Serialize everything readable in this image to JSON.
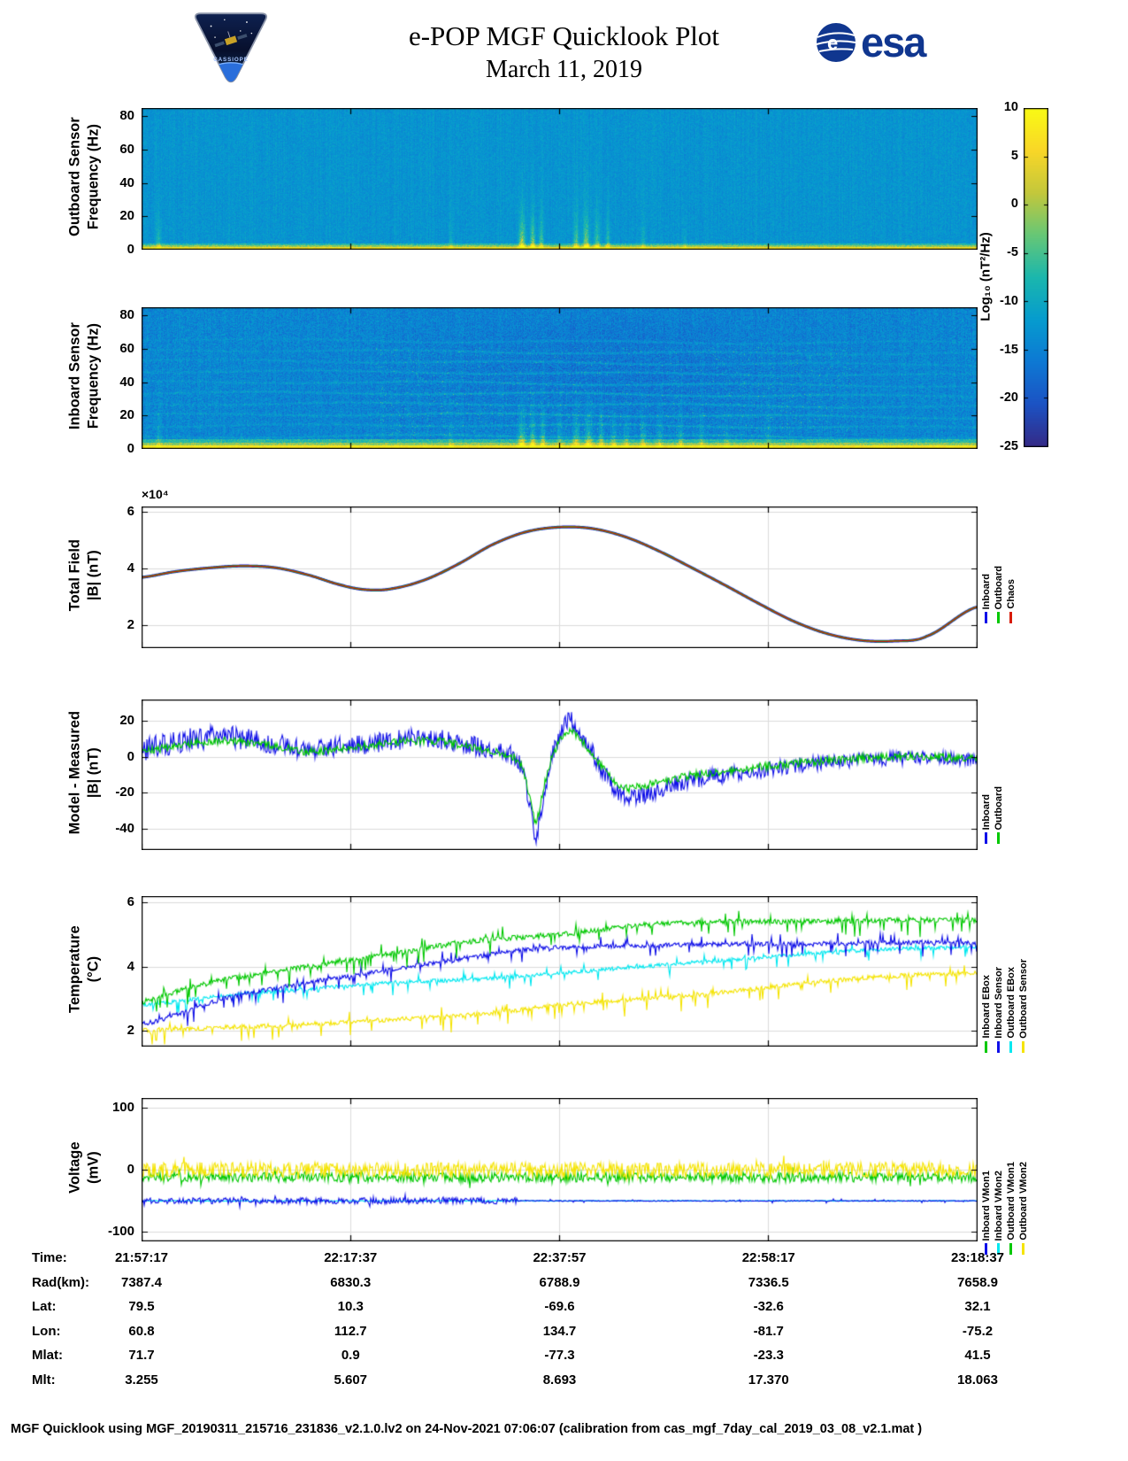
{
  "header": {
    "title": "e-POP MGF Quicklook Plot",
    "date": "March 11, 2019",
    "mission_text": "CASSIOPE",
    "esa_text": "esa"
  },
  "chart_data": {
    "title": "e-POP MGF Quicklook Plot",
    "subtitle": "March 11, 2019",
    "x_axis": {
      "label": "Time",
      "ticks": [
        "21:57:17",
        "22:17:37",
        "22:37:57",
        "22:58:17",
        "23:18:37"
      ]
    },
    "colorbar": {
      "label": "Log₁₀ (nT²/Hz)",
      "ticks": [
        10,
        5,
        0,
        -5,
        -10,
        -15,
        -20,
        -25
      ],
      "min": -25,
      "max": 10
    },
    "panels": [
      {
        "type": "heatmap",
        "name": "outboard-spectrogram",
        "ylabel": [
          "Outboard Sensor",
          "Frequency (Hz)"
        ],
        "yticks": [
          0,
          20,
          40,
          60,
          80
        ],
        "ylim": [
          0,
          85
        ],
        "base_level_db": -12.8,
        "noise_db": 1.8,
        "low_band": {
          "freq_hz": 2,
          "level_db": 7
        },
        "bands": [],
        "streaks": [
          {
            "x": 0.02,
            "amp": 8,
            "w": 0.003
          },
          {
            "x": 0.37,
            "amp": 5,
            "w": 0.0025
          },
          {
            "x": 0.455,
            "amp": 20,
            "w": 0.0035
          },
          {
            "x": 0.468,
            "amp": 16,
            "w": 0.003
          },
          {
            "x": 0.478,
            "amp": 12,
            "w": 0.0025
          },
          {
            "x": 0.52,
            "amp": 12,
            "w": 0.003
          },
          {
            "x": 0.532,
            "amp": 16,
            "w": 0.0035
          },
          {
            "x": 0.545,
            "amp": 12,
            "w": 0.003
          },
          {
            "x": 0.558,
            "amp": 10,
            "w": 0.0025
          },
          {
            "x": 0.6,
            "amp": 6,
            "w": 0.0025
          },
          {
            "x": 0.65,
            "amp": 4,
            "w": 0.0025
          }
        ]
      },
      {
        "type": "heatmap",
        "name": "inboard-spectrogram",
        "ylabel": [
          "Inboard Sensor",
          "Frequency (Hz)"
        ],
        "yticks": [
          0,
          20,
          40,
          60,
          80
        ],
        "ylim": [
          0,
          85
        ],
        "base_level_db": -14.5,
        "noise_db": 3,
        "low_band": {
          "freq_hz": 3,
          "level_db": 8
        },
        "bands": [
          {
            "f": 6.5,
            "amp": 4
          },
          {
            "f": 13,
            "amp": 3.5
          },
          {
            "f": 19.5,
            "amp": 4.2
          },
          {
            "f": 26,
            "amp": 3.6
          },
          {
            "f": 32.5,
            "amp": 4.2
          },
          {
            "f": 39,
            "amp": 3.6
          },
          {
            "f": 45.5,
            "amp": 3.4
          },
          {
            "f": 52,
            "amp": 3
          },
          {
            "f": 58.5,
            "amp": 3
          },
          {
            "f": 65,
            "amp": 2.4
          }
        ],
        "streaks": [
          {
            "x": 0.02,
            "amp": 6,
            "w": 0.003
          },
          {
            "x": 0.37,
            "amp": 5,
            "w": 0.003
          },
          {
            "x": 0.455,
            "amp": 16,
            "w": 0.004
          },
          {
            "x": 0.468,
            "amp": 14,
            "w": 0.003
          },
          {
            "x": 0.48,
            "amp": 12,
            "w": 0.003
          },
          {
            "x": 0.5,
            "amp": 8,
            "w": 0.003
          },
          {
            "x": 0.52,
            "amp": 12,
            "w": 0.004
          },
          {
            "x": 0.535,
            "amp": 14,
            "w": 0.004
          },
          {
            "x": 0.55,
            "amp": 10,
            "w": 0.003
          },
          {
            "x": 0.565,
            "amp": 9,
            "w": 0.003
          },
          {
            "x": 0.58,
            "amp": 7,
            "w": 0.003
          },
          {
            "x": 0.6,
            "amp": 8,
            "w": 0.003
          },
          {
            "x": 0.62,
            "amp": 7,
            "w": 0.003
          },
          {
            "x": 0.645,
            "amp": 8,
            "w": 0.003
          },
          {
            "x": 0.67,
            "amp": 6,
            "w": 0.003
          },
          {
            "x": 0.7,
            "amp": 5,
            "w": 0.003
          },
          {
            "x": 0.75,
            "amp": 4,
            "w": 0.003
          }
        ]
      },
      {
        "type": "line",
        "name": "total-field",
        "ylabel": [
          "Total Field",
          "|B| (nT)"
        ],
        "scale_label": "×10⁴",
        "yticks": [
          2,
          4,
          6
        ],
        "ylim": [
          1.2,
          6.2
        ],
        "legend": [
          {
            "label": "Inboard",
            "color": "#0f0fe8"
          },
          {
            "label": "Outboard",
            "color": "#00c800"
          },
          {
            "label": "Chaos",
            "color": "#d81b06"
          }
        ],
        "x": [
          0,
          0.04,
          0.08,
          0.12,
          0.16,
          0.2,
          0.24,
          0.27,
          0.3,
          0.34,
          0.38,
          0.42,
          0.46,
          0.5,
          0.54,
          0.58,
          0.62,
          0.66,
          0.7,
          0.74,
          0.78,
          0.82,
          0.86,
          0.9,
          0.94,
          1.0
        ],
        "values_1e4": [
          3.7,
          3.9,
          4.03,
          4.1,
          4.04,
          3.78,
          3.42,
          3.26,
          3.3,
          3.62,
          4.18,
          4.85,
          5.3,
          5.47,
          5.42,
          5.12,
          4.62,
          4.02,
          3.4,
          2.76,
          2.16,
          1.72,
          1.48,
          1.45,
          1.62,
          2.65
        ]
      },
      {
        "type": "noisy-lines",
        "name": "model-minus-measured",
        "ylabel": [
          "Model - Measured",
          "|B| (nT)"
        ],
        "yticks": [
          -40,
          -20,
          0,
          20
        ],
        "ylim": [
          -52,
          32
        ],
        "legend": [
          {
            "label": "Inboard",
            "color": "#0f0fe8"
          },
          {
            "label": "Outboard",
            "color": "#00c800"
          }
        ],
        "series": [
          {
            "name": "Inboard",
            "color": "#0f0fe8",
            "noise": 6,
            "taper": true,
            "x": [
              0,
              0.05,
              0.1,
              0.15,
              0.2,
              0.25,
              0.3,
              0.35,
              0.4,
              0.44,
              0.455,
              0.465,
              0.472,
              0.482,
              0.492,
              0.505,
              0.515,
              0.53,
              0.55,
              0.575,
              0.6,
              0.65,
              0.7,
              0.75,
              0.8,
              0.85,
              0.9,
              0.95,
              1.0
            ],
            "values": [
              4,
              9,
              11,
              8,
              4,
              6,
              9,
              10,
              6,
              2,
              -6,
              -28,
              -44,
              -20,
              2,
              16,
              20,
              10,
              -6,
              -22,
              -21,
              -14,
              -10,
              -7,
              -4,
              -2,
              -1,
              0,
              -2
            ]
          },
          {
            "name": "Outboard",
            "color": "#00c800",
            "noise": 2.2,
            "x": [
              0,
              0.05,
              0.1,
              0.15,
              0.2,
              0.25,
              0.3,
              0.35,
              0.4,
              0.44,
              0.455,
              0.465,
              0.472,
              0.482,
              0.492,
              0.505,
              0.515,
              0.53,
              0.55,
              0.575,
              0.6,
              0.65,
              0.7,
              0.75,
              0.8,
              0.85,
              0.9,
              0.95,
              1.0
            ],
            "values": [
              3,
              7,
              9,
              7,
              3,
              5,
              8,
              9,
              5,
              1,
              -5,
              -22,
              -36,
              -16,
              1,
              11,
              14,
              7,
              -5,
              -17,
              -16,
              -11,
              -8,
              -5,
              -3,
              -1,
              0,
              0,
              -1
            ]
          }
        ]
      },
      {
        "type": "noisy-lines",
        "name": "temperature",
        "ylabel": [
          "Temperature",
          "(°C)"
        ],
        "yticks": [
          2,
          4,
          6
        ],
        "ylim": [
          1.5,
          6.2
        ],
        "legend": [
          {
            "label": "Inboard EBox",
            "color": "#00c800"
          },
          {
            "label": "Inboard Sensor",
            "color": "#0f0fe8"
          },
          {
            "label": "Outboard EBox",
            "color": "#00e8f0"
          },
          {
            "label": "Outboard Sensor",
            "color": "#f5e400"
          }
        ],
        "series": [
          {
            "name": "Outboard Sensor",
            "color": "#f5e400",
            "noise": 0.07,
            "spike": 0.3,
            "x": [
              0,
              0.1,
              0.2,
              0.3,
              0.4,
              0.5,
              0.6,
              0.7,
              0.8,
              0.9,
              1.0
            ],
            "values": [
              2.0,
              2.1,
              2.2,
              2.35,
              2.5,
              2.8,
              3.0,
              3.2,
              3.5,
              3.7,
              3.8
            ]
          },
          {
            "name": "Outboard EBox",
            "color": "#00e8f0",
            "noise": 0.06,
            "spike": 0.22,
            "x": [
              0,
              0.1,
              0.2,
              0.3,
              0.4,
              0.5,
              0.6,
              0.7,
              0.8,
              0.9,
              1.0
            ],
            "values": [
              2.8,
              3.1,
              3.3,
              3.5,
              3.6,
              3.8,
              4.0,
              4.2,
              4.4,
              4.55,
              4.6
            ]
          },
          {
            "name": "Inboard Sensor",
            "color": "#0f0fe8",
            "noise": 0.07,
            "spike": 0.28,
            "x": [
              0,
              0.1,
              0.2,
              0.3,
              0.4,
              0.45,
              0.5,
              0.6,
              0.7,
              0.8,
              0.9,
              1.0
            ],
            "values": [
              2.2,
              3.0,
              3.5,
              3.9,
              4.3,
              4.5,
              4.6,
              4.65,
              4.7,
              4.7,
              4.75,
              4.75
            ]
          },
          {
            "name": "Inboard EBox",
            "color": "#00c800",
            "noise": 0.08,
            "spike": 0.32,
            "x": [
              0,
              0.05,
              0.1,
              0.2,
              0.3,
              0.4,
              0.5,
              0.6,
              0.7,
              0.8,
              0.9,
              1.0
            ],
            "values": [
              2.9,
              3.3,
              3.6,
              4.0,
              4.4,
              4.8,
              5.0,
              5.3,
              5.4,
              5.4,
              5.45,
              5.45
            ]
          }
        ]
      },
      {
        "type": "noisy-lines",
        "name": "voltage",
        "ylabel": [
          "Voltage",
          "(mV)"
        ],
        "yticks": [
          -100,
          0,
          100
        ],
        "ylim": [
          -115,
          115
        ],
        "legend": [
          {
            "label": "Inboard VMon1",
            "color": "#0f0fe8"
          },
          {
            "label": "Inboard VMon2",
            "color": "#00e8f0"
          },
          {
            "label": "Outboard VMon1",
            "color": "#00c800"
          },
          {
            "label": "Outboard VMon2",
            "color": "#f5e400"
          }
        ],
        "series": [
          {
            "name": "Inboard VMon2",
            "color": "#00e8f0",
            "noise": 0.8,
            "x": [
              0,
              1
            ],
            "values": [
              -50,
              -50
            ]
          },
          {
            "name": "Inboard VMon1",
            "color": "#0f0fe8",
            "noise": 5,
            "noise_until": 0.45,
            "noise_after": 0.8,
            "burst": 12,
            "x": [
              0,
              1
            ],
            "values": [
              -50,
              -50
            ]
          },
          {
            "name": "Outboard VMon1",
            "color": "#00c800",
            "noise": 8,
            "burst": 10,
            "x": [
              0,
              1
            ],
            "values": [
              -12,
              -12
            ]
          },
          {
            "name": "Outboard VMon2",
            "color": "#f5e400",
            "noise": 12,
            "burst": 14,
            "x": [
              0,
              1
            ],
            "values": [
              0,
              0
            ]
          }
        ]
      }
    ]
  },
  "bottom_table": {
    "rows": [
      {
        "label": "Time:",
        "values": [
          "21:57:17",
          "22:17:37",
          "22:37:57",
          "22:58:17",
          "23:18:37"
        ]
      },
      {
        "label": "Rad(km):",
        "values": [
          "7387.4",
          "6830.3",
          "6788.9",
          "7336.5",
          "7658.9"
        ]
      },
      {
        "label": "Lat:",
        "values": [
          "79.5",
          "10.3",
          "-69.6",
          "-32.6",
          "32.1"
        ]
      },
      {
        "label": "Lon:",
        "values": [
          "60.8",
          "112.7",
          "134.7",
          "-81.7",
          "-75.2"
        ]
      },
      {
        "label": "Mlat:",
        "values": [
          "71.7",
          "0.9",
          "-77.3",
          "-23.3",
          "41.5"
        ]
      },
      {
        "label": "Mlt:",
        "values": [
          "3.255",
          "5.607",
          "8.693",
          "17.370",
          "18.063"
        ]
      }
    ]
  },
  "footer": "MGF Quicklook using MGF_20190311_215716_231836_v2.1.0.lv2 on 24-Nov-2021 07:06:07 (calibration from cas_mgf_7day_cal_2019_03_08_v2.1.mat )"
}
